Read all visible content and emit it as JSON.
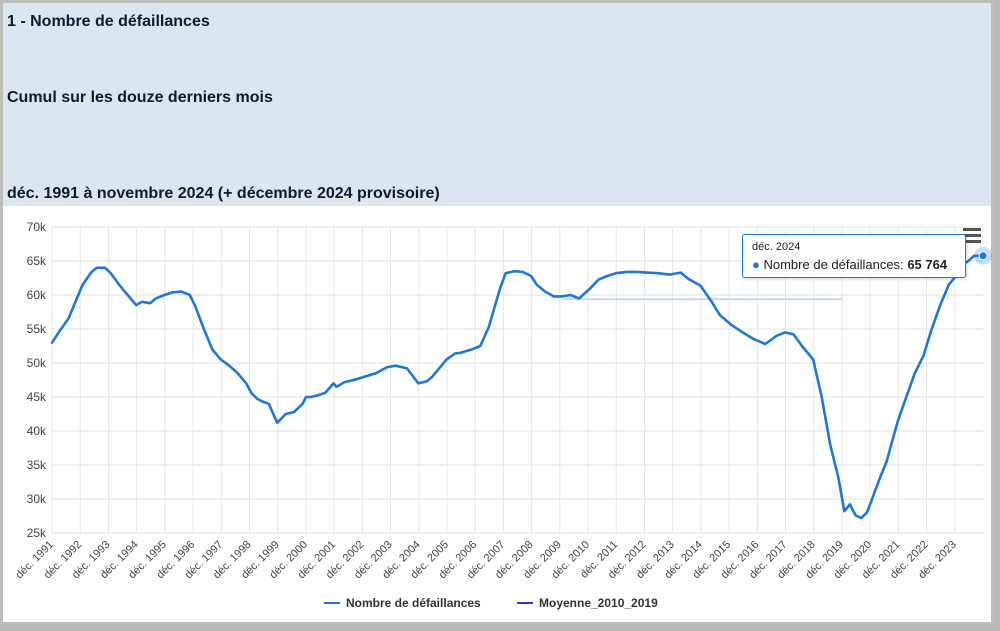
{
  "header": {
    "title": "1 - Nombre de défaillances",
    "subtitle": "Cumul sur les douze derniers mois",
    "period": "déc. 1991 à novembre 2024 (+ décembre 2024 provisoire)"
  },
  "tooltip": {
    "date": "déc. 2024",
    "series": "Nombre de défaillances:",
    "value": "65 764"
  },
  "colors": {
    "main": "#1f77d6",
    "avg": "#2a3fc9",
    "avg_segment": "#c9d7ee",
    "header_bg": "#dce6f1"
  },
  "chart_data": {
    "type": "line",
    "title": "1 - Nombre de défaillances",
    "ylim": [
      25000,
      70000
    ],
    "y_ticks": [
      25000,
      30000,
      35000,
      40000,
      45000,
      50000,
      55000,
      60000,
      65000,
      70000
    ],
    "y_tick_labels": [
      "25k",
      "30k",
      "35k",
      "40k",
      "45k",
      "50k",
      "55k",
      "60k",
      "65k",
      "70k"
    ],
    "x_tick_labels": [
      "déc. 1991",
      "déc. 1992",
      "déc. 1993",
      "déc. 1994",
      "déc. 1995",
      "déc. 1996",
      "déc. 1997",
      "déc. 1998",
      "déc. 1999",
      "déc. 2000",
      "déc. 2001",
      "déc. 2002",
      "déc. 2003",
      "déc. 2004",
      "déc. 2005",
      "déc. 2006",
      "déc. 2007",
      "déc. 2008",
      "déc. 2009",
      "déc. 2010",
      "déc. 2011",
      "déc. 2012",
      "déc. 2013",
      "déc. 2014",
      "déc. 2015",
      "déc. 2016",
      "déc. 2017",
      "déc. 2018",
      "déc. 2019",
      "déc. 2020",
      "déc. 2021",
      "déc. 2022",
      "déc. 2023"
    ],
    "x_range": [
      1991.917,
      2024.917
    ],
    "grid": true,
    "legend_position": "bottom-center",
    "series": [
      {
        "name": "Nombre de défaillances",
        "x": [
          1991.92,
          1992.2,
          1992.5,
          1992.8,
          1993.0,
          1993.3,
          1993.5,
          1993.8,
          1994.0,
          1994.3,
          1994.6,
          1994.9,
          1995.1,
          1995.4,
          1995.6,
          1995.9,
          1996.2,
          1996.5,
          1996.8,
          1997.0,
          1997.3,
          1997.6,
          1997.9,
          1998.2,
          1998.5,
          1998.8,
          1999.0,
          1999.2,
          1999.4,
          1999.6,
          1999.9,
          2000.2,
          2000.5,
          2000.8,
          2000.92,
          2001.1,
          2001.3,
          2001.6,
          2001.9,
          2002.0,
          2002.3,
          2002.7,
          2003.0,
          2003.4,
          2003.8,
          2004.1,
          2004.5,
          2004.9,
          2005.2,
          2005.4,
          2005.7,
          2005.9,
          2006.2,
          2006.4,
          2006.8,
          2007.1,
          2007.4,
          2007.8,
          2008.0,
          2008.3,
          2008.6,
          2008.9,
          2009.1,
          2009.4,
          2009.7,
          2010.0,
          2010.3,
          2010.6,
          2011.0,
          2011.3,
          2011.6,
          2011.9,
          2012.3,
          2012.6,
          2013.0,
          2013.4,
          2013.8,
          2014.2,
          2014.5,
          2014.9,
          2015.3,
          2015.6,
          2016.0,
          2016.4,
          2016.8,
          2017.2,
          2017.6,
          2017.9,
          2018.2,
          2018.5,
          2018.9,
          2019.2,
          2019.5,
          2019.8,
          2020.0,
          2020.2,
          2020.4,
          2020.6,
          2020.8,
          2020.95,
          2021.1,
          2021.3,
          2021.5,
          2021.7,
          2021.9,
          2022.2,
          2022.5,
          2022.8,
          2023.1,
          2023.4,
          2023.7,
          2024.0,
          2024.2,
          2024.4,
          2024.6,
          2024.8,
          2024.92
        ],
        "values": [
          53000,
          54800,
          56500,
          59500,
          61500,
          63300,
          64000,
          64000,
          63200,
          61500,
          60000,
          58500,
          59000,
          58800,
          59500,
          60000,
          60400,
          60500,
          60000,
          58300,
          55000,
          52000,
          50500,
          49600,
          48500,
          47000,
          45500,
          44700,
          44300,
          44000,
          41200,
          42500,
          42800,
          44000,
          45000,
          45000,
          45200,
          45600,
          47000,
          46500,
          47200,
          47600,
          48000,
          48500,
          49400,
          49600,
          49200,
          47000,
          47300,
          48000,
          49500,
          50500,
          51400,
          51500,
          52000,
          52500,
          55300,
          61000,
          63200,
          63500,
          63400,
          62800,
          61500,
          60500,
          59800,
          59800,
          60000,
          59500,
          61000,
          62300,
          62800,
          63200,
          63400,
          63400,
          63300,
          63200,
          63000,
          63300,
          62300,
          61400,
          59000,
          57000,
          55600,
          54500,
          53500,
          52800,
          54000,
          54500,
          54200,
          52500,
          50500,
          45000,
          38000,
          33000,
          28200,
          29200,
          27600,
          27200,
          28000,
          29600,
          31300,
          33500,
          35500,
          38500,
          41500,
          45000,
          48500,
          51000,
          55000,
          58500,
          61500,
          63000,
          64500,
          65000,
          65764,
          65764,
          65764
        ]
      },
      {
        "name": "Moyenne_2010_2019",
        "x": [
          2010.0,
          2019.92
        ],
        "values": [
          59400,
          59400
        ]
      }
    ]
  }
}
